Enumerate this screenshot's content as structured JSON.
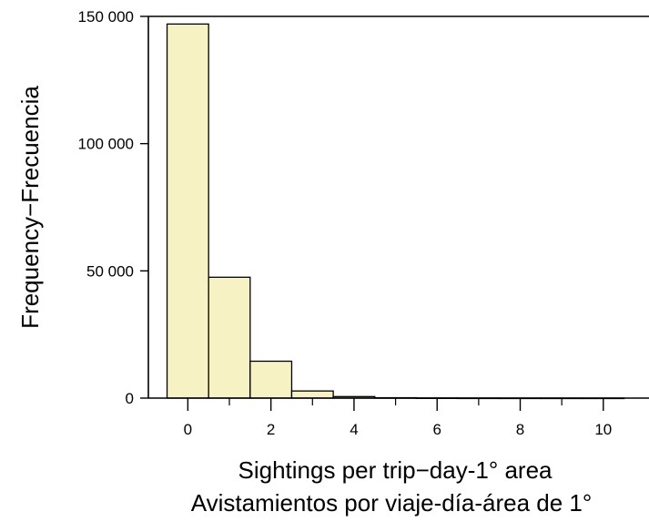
{
  "chart_data": {
    "type": "bar",
    "bar_color": "#f7f2c4",
    "bar_edge_color": "#000000",
    "bins": [
      {
        "x0": -0.5,
        "x1": 0.5,
        "value": 147000
      },
      {
        "x0": 0.5,
        "x1": 1.5,
        "value": 47500
      },
      {
        "x0": 1.5,
        "x1": 2.5,
        "value": 14500
      },
      {
        "x0": 2.5,
        "x1": 3.5,
        "value": 2800
      },
      {
        "x0": 3.5,
        "x1": 4.5,
        "value": 600
      },
      {
        "x0": 4.5,
        "x1": 5.5,
        "value": 150
      },
      {
        "x0": 5.5,
        "x1": 6.5,
        "value": 50
      },
      {
        "x0": 6.5,
        "x1": 7.5,
        "value": 20
      },
      {
        "x0": 7.5,
        "x1": 8.5,
        "value": 10
      },
      {
        "x0": 8.5,
        "x1": 9.5,
        "value": 5
      },
      {
        "x0": 9.5,
        "x1": 10.5,
        "value": 3
      }
    ],
    "xlim": [
      -0.95,
      11.1
    ],
    "ylim": [
      0,
      150000
    ],
    "x_ticks": [
      0,
      2,
      4,
      6,
      8,
      10
    ],
    "x_minor_ticks": [
      1,
      3,
      5,
      7,
      9
    ],
    "x_tick_labels": [
      "0",
      "2",
      "4",
      "6",
      "8",
      "10"
    ],
    "y_ticks": [
      0,
      50000,
      100000,
      150000
    ],
    "y_tick_labels": [
      "0",
      "50 000",
      "100 000",
      "150 000"
    ],
    "ylabel": "Frequency−Frecuencia",
    "xlabel_lines": [
      "Sightings per trip−day-1° area",
      "Avistamientos por viaje-día-área de 1°"
    ],
    "grid": false
  }
}
